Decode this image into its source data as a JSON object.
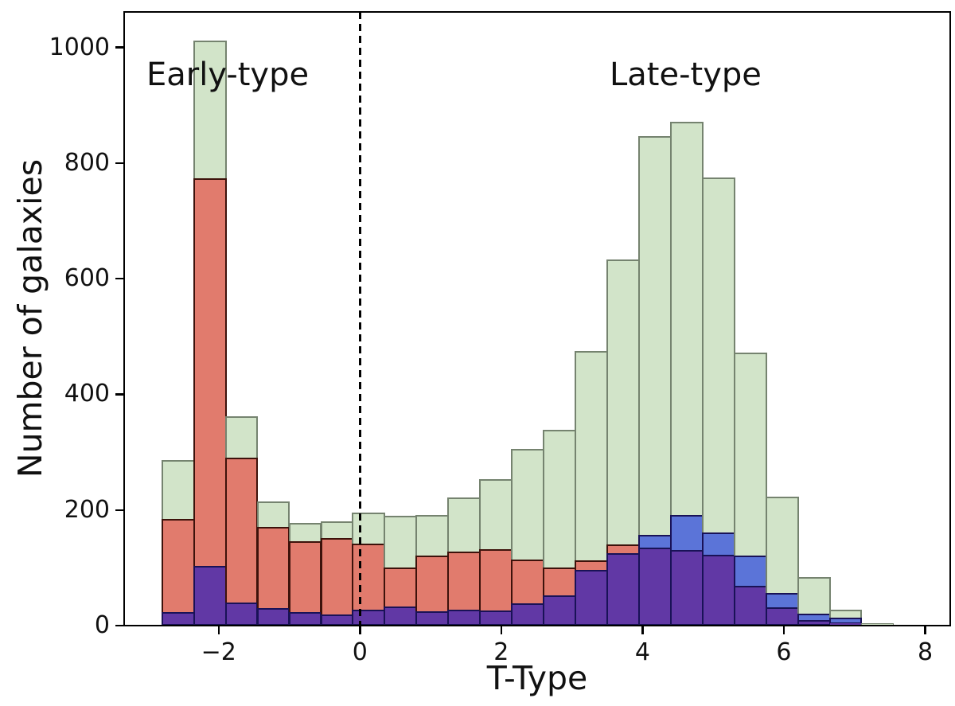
{
  "annotations": {
    "early_type": "Early-type",
    "late_type": "Late-type"
  },
  "axes": {
    "xlabel": "T-Type",
    "ylabel": "Number of galaxies",
    "x_ticks": [
      {
        "value": -2,
        "label": "−2"
      },
      {
        "value": 0,
        "label": "0"
      },
      {
        "value": 2,
        "label": "2"
      },
      {
        "value": 4,
        "label": "4"
      },
      {
        "value": 6,
        "label": "6"
      },
      {
        "value": 8,
        "label": "8"
      }
    ],
    "y_ticks": [
      {
        "value": 0,
        "label": "0"
      },
      {
        "value": 200,
        "label": "200"
      },
      {
        "value": 400,
        "label": "400"
      },
      {
        "value": 600,
        "label": "600"
      },
      {
        "value": 800,
        "label": "800"
      },
      {
        "value": 1000,
        "label": "1000"
      }
    ]
  },
  "chart_data": {
    "type": "bar",
    "subtype": "overlapping-histograms",
    "title": "",
    "xlabel": "T-Type",
    "ylabel": "Number of galaxies",
    "xlim": [
      -3.35,
      8.37
    ],
    "ylim": [
      0,
      1060
    ],
    "grid": false,
    "legend": "none",
    "vline_x": 0,
    "vline_style": "dashed-black",
    "bin_start": -2.8,
    "bin_width": 0.45,
    "n_bins": 24,
    "series": [
      {
        "name": "green-all-galaxies",
        "fill": "#d2e4c9",
        "edge": "#75836f",
        "values": [
          287,
          1012,
          362,
          215,
          177,
          181,
          196,
          190,
          192,
          222,
          253,
          306,
          339,
          475,
          633,
          846,
          871,
          775,
          472,
          223,
          84,
          27,
          4,
          1
        ]
      },
      {
        "name": "red-early-type",
        "fill": "#e17b6d",
        "edge": "#3d120b",
        "values": [
          184,
          773,
          290,
          171,
          146,
          152,
          142,
          101,
          121,
          128,
          132,
          114,
          100,
          113,
          140,
          135,
          131,
          122,
          69,
          32,
          10,
          5,
          1,
          0
        ]
      },
      {
        "name": "blue-late-type",
        "fill": "#5b74d8",
        "edge": "#191257",
        "values": [
          24,
          103,
          40,
          30,
          23,
          20,
          28,
          33,
          25,
          28,
          26,
          39,
          52,
          96,
          125,
          157,
          192,
          161,
          121,
          57,
          21,
          14,
          2,
          0
        ]
      }
    ],
    "overlap_fill": "#6138a5",
    "annotations": [
      {
        "text": "Early-type",
        "region": "left-of-vline"
      },
      {
        "text": "Late-type",
        "region": "right-of-vline"
      }
    ]
  }
}
